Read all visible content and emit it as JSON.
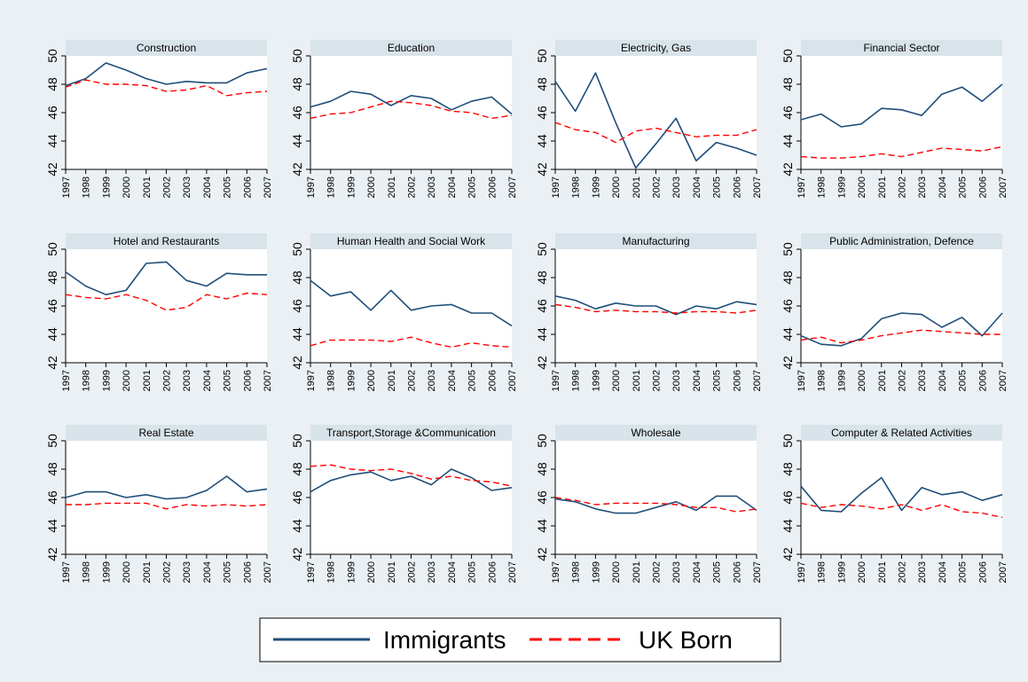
{
  "colors": {
    "figure_background": "#eaf0f4",
    "plot_background": "#ffffff",
    "panel_title_background": "#d9e3ea",
    "immigrants": "#1f4e79",
    "uk_born": "#ff0000"
  },
  "chart_data": {
    "type": "line",
    "layout": "3x4 small multiples",
    "x": [
      "1997",
      "1998",
      "1999",
      "2000",
      "2001",
      "2002",
      "2003",
      "2004",
      "2005",
      "2006",
      "2007"
    ],
    "yticks": [
      42,
      44,
      46,
      48,
      50
    ],
    "ylim": [
      42,
      50
    ],
    "grid": false,
    "legend": {
      "position": "bottom-center",
      "entries": [
        {
          "label": "Immigrants",
          "style": "solid",
          "color": "#1f4e79"
        },
        {
          "label": "UK Born",
          "style": "dashed",
          "color": "#ff0000"
        }
      ]
    },
    "panels": [
      {
        "title": "Construction",
        "series": [
          {
            "name": "Immigrants",
            "values": [
              47.9,
              48.4,
              49.5,
              49.0,
              48.4,
              48.0,
              48.2,
              48.1,
              48.1,
              48.8,
              49.1
            ]
          },
          {
            "name": "UK Born",
            "values": [
              47.8,
              48.3,
              48.0,
              48.0,
              47.9,
              47.5,
              47.6,
              47.9,
              47.2,
              47.4,
              47.5
            ]
          }
        ]
      },
      {
        "title": "Education",
        "series": [
          {
            "name": "Immigrants",
            "values": [
              46.4,
              46.8,
              47.5,
              47.3,
              46.5,
              47.2,
              47.0,
              46.2,
              46.8,
              47.1,
              45.9
            ]
          },
          {
            "name": "UK Born",
            "values": [
              45.6,
              45.9,
              46.0,
              46.4,
              46.8,
              46.7,
              46.5,
              46.1,
              46.0,
              45.6,
              45.8
            ]
          }
        ]
      },
      {
        "title": "Electricity, Gas",
        "series": [
          {
            "name": "Immigrants",
            "values": [
              48.2,
              46.1,
              48.8,
              45.3,
              42.1,
              43.8,
              45.6,
              42.6,
              43.9,
              43.5,
              43.0
            ]
          },
          {
            "name": "UK Born",
            "values": [
              45.3,
              44.8,
              44.6,
              43.9,
              44.7,
              44.9,
              44.6,
              44.3,
              44.4,
              44.4,
              44.8
            ]
          }
        ]
      },
      {
        "title": "Financial Sector",
        "series": [
          {
            "name": "Immigrants",
            "values": [
              45.5,
              45.9,
              45.0,
              45.2,
              46.3,
              46.2,
              45.8,
              47.3,
              47.8,
              46.8,
              48.0
            ]
          },
          {
            "name": "UK Born",
            "values": [
              42.9,
              42.8,
              42.8,
              42.9,
              43.1,
              42.9,
              43.2,
              43.5,
              43.4,
              43.3,
              43.6
            ]
          }
        ]
      },
      {
        "title": "Hotel and Restaurants",
        "series": [
          {
            "name": "Immigrants",
            "values": [
              48.4,
              47.4,
              46.8,
              47.1,
              49.0,
              49.1,
              47.8,
              47.4,
              48.3,
              48.2,
              48.2
            ]
          },
          {
            "name": "UK Born",
            "values": [
              46.8,
              46.6,
              46.5,
              46.8,
              46.4,
              45.7,
              45.9,
              46.8,
              46.5,
              46.9,
              46.8
            ]
          }
        ]
      },
      {
        "title": "Human Health and Social Work",
        "series": [
          {
            "name": "Immigrants",
            "values": [
              47.8,
              46.7,
              47.0,
              45.7,
              47.1,
              45.7,
              46.0,
              46.1,
              45.5,
              45.5,
              44.6
            ]
          },
          {
            "name": "UK Born",
            "values": [
              43.2,
              43.6,
              43.6,
              43.6,
              43.5,
              43.8,
              43.4,
              43.1,
              43.4,
              43.2,
              43.1
            ]
          }
        ]
      },
      {
        "title": "Manufacturing",
        "series": [
          {
            "name": "Immigrants",
            "values": [
              46.7,
              46.4,
              45.8,
              46.2,
              46.0,
              46.0,
              45.4,
              46.0,
              45.8,
              46.3,
              46.1
            ]
          },
          {
            "name": "UK Born",
            "values": [
              46.1,
              45.9,
              45.6,
              45.7,
              45.6,
              45.6,
              45.5,
              45.6,
              45.6,
              45.5,
              45.7
            ]
          }
        ]
      },
      {
        "title": "Public Administration, Defence",
        "series": [
          {
            "name": "Immigrants",
            "values": [
              43.9,
              43.3,
              43.2,
              43.7,
              45.1,
              45.5,
              45.4,
              44.5,
              45.2,
              43.9,
              45.5
            ]
          },
          {
            "name": "UK Born",
            "values": [
              43.6,
              43.8,
              43.4,
              43.6,
              43.9,
              44.1,
              44.3,
              44.2,
              44.1,
              44.0,
              44.0
            ]
          }
        ]
      },
      {
        "title": "Real Estate",
        "series": [
          {
            "name": "Immigrants",
            "values": [
              46.0,
              46.4,
              46.4,
              46.0,
              46.2,
              45.9,
              46.0,
              46.5,
              47.5,
              46.4,
              46.6
            ]
          },
          {
            "name": "UK Born",
            "values": [
              45.5,
              45.5,
              45.6,
              45.6,
              45.6,
              45.2,
              45.5,
              45.4,
              45.5,
              45.4,
              45.5
            ]
          }
        ]
      },
      {
        "title": "Transport,Storage &Communication",
        "series": [
          {
            "name": "Immigrants",
            "values": [
              46.4,
              47.2,
              47.6,
              47.8,
              47.2,
              47.5,
              46.9,
              48.0,
              47.4,
              46.5,
              46.7
            ]
          },
          {
            "name": "UK Born",
            "values": [
              48.2,
              48.3,
              48.0,
              47.9,
              48.0,
              47.7,
              47.3,
              47.5,
              47.2,
              47.1,
              46.8
            ]
          }
        ]
      },
      {
        "title": "Wholesale",
        "series": [
          {
            "name": "Immigrants",
            "values": [
              45.9,
              45.7,
              45.2,
              44.9,
              44.9,
              45.3,
              45.7,
              45.1,
              46.1,
              46.1,
              45.1
            ]
          },
          {
            "name": "UK Born",
            "values": [
              46.0,
              45.8,
              45.5,
              45.6,
              45.6,
              45.6,
              45.5,
              45.3,
              45.3,
              45.0,
              45.2
            ]
          }
        ]
      },
      {
        "title": "Computer & Related Activities",
        "series": [
          {
            "name": "Immigrants",
            "values": [
              46.8,
              45.1,
              45.0,
              46.3,
              47.4,
              45.1,
              46.7,
              46.2,
              46.4,
              45.8,
              46.2
            ]
          },
          {
            "name": "UK Born",
            "values": [
              45.6,
              45.3,
              45.5,
              45.4,
              45.2,
              45.5,
              45.1,
              45.5,
              45.0,
              44.9,
              44.6
            ]
          }
        ]
      }
    ]
  }
}
